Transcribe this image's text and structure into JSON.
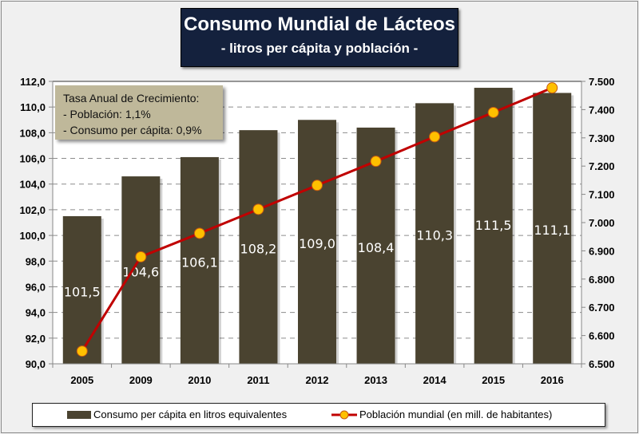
{
  "title": {
    "main": "Consumo Mundial de Lácteos",
    "sub": "- litros per cápita y población -"
  },
  "note": {
    "line1": "Tasa Anual de Crecimiento:",
    "line2": "- Población: 1,1%",
    "line3": "- Consumo per cápita: 0,9%"
  },
  "legend": {
    "bars": "Consumo per cápita en litros equivalentes",
    "line": "Población mundial (en mill. de habitantes)"
  },
  "colors": {
    "bar": "#4a4330",
    "line": "#c00000",
    "marker": "#ffc000",
    "marker_edge": "#c55a11",
    "title_bg": "#14213d",
    "note_bg": "#bfb89a"
  },
  "chart_data": {
    "type": "bar+line",
    "title": "Consumo Mundial de Lácteos - litros per cápita y población -",
    "categories": [
      "2005",
      "2009",
      "2010",
      "2011",
      "2012",
      "2013",
      "2014",
      "2015",
      "2016"
    ],
    "series": [
      {
        "name": "Consumo per cápita en litros equivalentes",
        "type": "bar",
        "axis": "left",
        "values": [
          101.5,
          104.6,
          106.1,
          108.2,
          109.0,
          108.4,
          110.3,
          111.5,
          111.1
        ],
        "labels": [
          "101,5",
          "104,6",
          "106,1",
          "108,2",
          "109,0",
          "108,4",
          "110,3",
          "111,5",
          "111,1"
        ]
      },
      {
        "name": "Población mundial (en mill. de habitantes)",
        "type": "line",
        "axis": "right",
        "values": [
          6545,
          6879,
          6962,
          7047,
          7132,
          7217,
          7304,
          7390,
          7477
        ]
      }
    ],
    "y_left": {
      "range": [
        90.0,
        112.0
      ],
      "step": 2.0,
      "ticks": [
        "90,0",
        "92,0",
        "94,0",
        "96,0",
        "98,0",
        "100,0",
        "102,0",
        "104,0",
        "106,0",
        "108,0",
        "110,0",
        "112,0"
      ]
    },
    "y_right": {
      "range": [
        6500,
        7500
      ],
      "step": 100,
      "ticks": [
        "6.500",
        "6.600",
        "6.700",
        "6.800",
        "6.900",
        "7.000",
        "7.100",
        "7.200",
        "7.300",
        "7.400",
        "7.500"
      ]
    },
    "grid": "horizontal dashed",
    "legend_position": "bottom"
  }
}
